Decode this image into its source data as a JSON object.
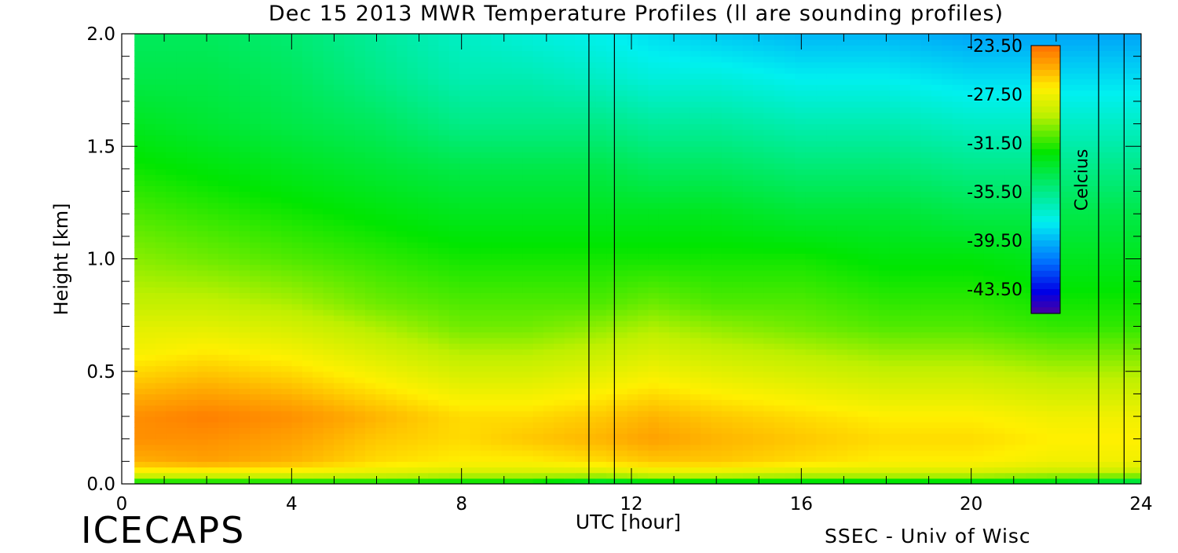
{
  "chart_data": {
    "type": "heatmap",
    "title": "Dec 15 2013 MWR Temperature Profiles (ll are sounding profiles)",
    "xlabel": "UTC [hour]",
    "ylabel": "Height [km]",
    "xlim": [
      0,
      24
    ],
    "ylim": [
      0,
      2.0
    ],
    "x_ticks": [
      "0",
      "4",
      "8",
      "12",
      "16",
      "20",
      "24"
    ],
    "y_ticks": [
      "0.0",
      "0.5",
      "1.0",
      "1.5",
      "2.0"
    ],
    "data_start_hour": 0.3,
    "colorbar": {
      "label": "Celcius",
      "range": [
        -45.5,
        -23.5
      ],
      "ticks": [
        "-23.50",
        "-27.50",
        "-31.50",
        "-35.50",
        "-39.50",
        "-43.50"
      ]
    },
    "sounding_times_utc": [
      11.0,
      11.6,
      23.0,
      23.6
    ],
    "time_hours": [
      0,
      2,
      4,
      6,
      8,
      9.5,
      11.3,
      12.5,
      14,
      16,
      18,
      20,
      22,
      24
    ],
    "heights_km": [
      0.0,
      0.02,
      0.05,
      0.1,
      0.2,
      0.3,
      0.4,
      0.5,
      0.6,
      0.7,
      0.8,
      1.0,
      1.2,
      1.4,
      1.6,
      1.8,
      2.0
    ],
    "temperature_celsius": [
      [
        -33.5,
        -33.5,
        -33.5,
        -33.5,
        -33.5,
        -33.5,
        -35.5,
        -34.5,
        -34.5,
        -34.5,
        -34.5,
        -34.5,
        -34.5,
        -36.5
      ],
      [
        -30.5,
        -30.5,
        -30.5,
        -30.5,
        -31.0,
        -31.0,
        -31.5,
        -31.0,
        -31.0,
        -31.0,
        -31.0,
        -31.0,
        -31.5,
        -32.0
      ],
      [
        -27.5,
        -27.5,
        -27.5,
        -28.0,
        -28.5,
        -28.5,
        -28.5,
        -28.0,
        -28.0,
        -28.5,
        -28.5,
        -28.5,
        -29.0,
        -29.0
      ],
      [
        -25.5,
        -25.0,
        -25.5,
        -26.5,
        -27.0,
        -27.0,
        -26.5,
        -26.0,
        -26.0,
        -26.5,
        -27.0,
        -27.0,
        -27.5,
        -27.5
      ],
      [
        -24.5,
        -24.5,
        -25.0,
        -26.0,
        -26.5,
        -26.0,
        -25.5,
        -25.0,
        -25.5,
        -26.0,
        -26.5,
        -26.5,
        -27.0,
        -27.0
      ],
      [
        -24.5,
        -24.0,
        -24.5,
        -25.5,
        -26.5,
        -26.5,
        -26.0,
        -25.5,
        -26.0,
        -26.5,
        -27.0,
        -27.0,
        -27.5,
        -27.5
      ],
      [
        -25.5,
        -25.0,
        -25.5,
        -26.5,
        -27.5,
        -27.5,
        -27.0,
        -26.5,
        -27.0,
        -27.5,
        -28.0,
        -28.0,
        -28.5,
        -28.5
      ],
      [
        -26.5,
        -26.0,
        -26.5,
        -27.5,
        -28.5,
        -28.5,
        -28.0,
        -27.5,
        -28.0,
        -28.5,
        -29.0,
        -29.0,
        -29.5,
        -29.5
      ],
      [
        -27.5,
        -27.0,
        -27.5,
        -28.5,
        -29.5,
        -29.5,
        -29.0,
        -28.5,
        -29.0,
        -29.5,
        -30.0,
        -30.0,
        -30.5,
        -30.5
      ],
      [
        -28.0,
        -28.0,
        -28.5,
        -29.5,
        -30.5,
        -30.5,
        -30.0,
        -29.5,
        -30.0,
        -30.5,
        -31.0,
        -31.0,
        -31.5,
        -31.5
      ],
      [
        -29.0,
        -29.0,
        -29.5,
        -30.5,
        -31.0,
        -31.0,
        -31.0,
        -30.5,
        -31.0,
        -31.0,
        -31.5,
        -31.5,
        -32.0,
        -32.0
      ],
      [
        -30.0,
        -30.5,
        -31.0,
        -31.5,
        -32.0,
        -32.0,
        -32.0,
        -32.0,
        -32.0,
        -32.0,
        -32.5,
        -32.5,
        -33.0,
        -33.0
      ],
      [
        -31.0,
        -31.5,
        -32.0,
        -32.5,
        -33.0,
        -33.0,
        -33.0,
        -33.0,
        -33.0,
        -33.5,
        -33.5,
        -34.0,
        -34.0,
        -34.0
      ],
      [
        -32.0,
        -32.5,
        -33.0,
        -33.5,
        -34.0,
        -34.0,
        -34.0,
        -34.5,
        -34.5,
        -35.0,
        -35.0,
        -35.5,
        -35.5,
        -35.5
      ],
      [
        -33.0,
        -33.5,
        -34.0,
        -34.5,
        -35.5,
        -35.5,
        -35.5,
        -36.0,
        -36.0,
        -36.5,
        -36.5,
        -37.0,
        -37.0,
        -37.0
      ],
      [
        -34.0,
        -34.0,
        -34.5,
        -35.5,
        -36.5,
        -36.5,
        -37.0,
        -37.5,
        -37.5,
        -38.0,
        -38.0,
        -38.5,
        -38.5,
        -38.5
      ],
      [
        -34.5,
        -34.5,
        -35.0,
        -36.0,
        -37.0,
        -37.5,
        -38.0,
        -38.5,
        -39.0,
        -39.5,
        -39.5,
        -40.0,
        -40.0,
        -40.0
      ]
    ]
  }
}
